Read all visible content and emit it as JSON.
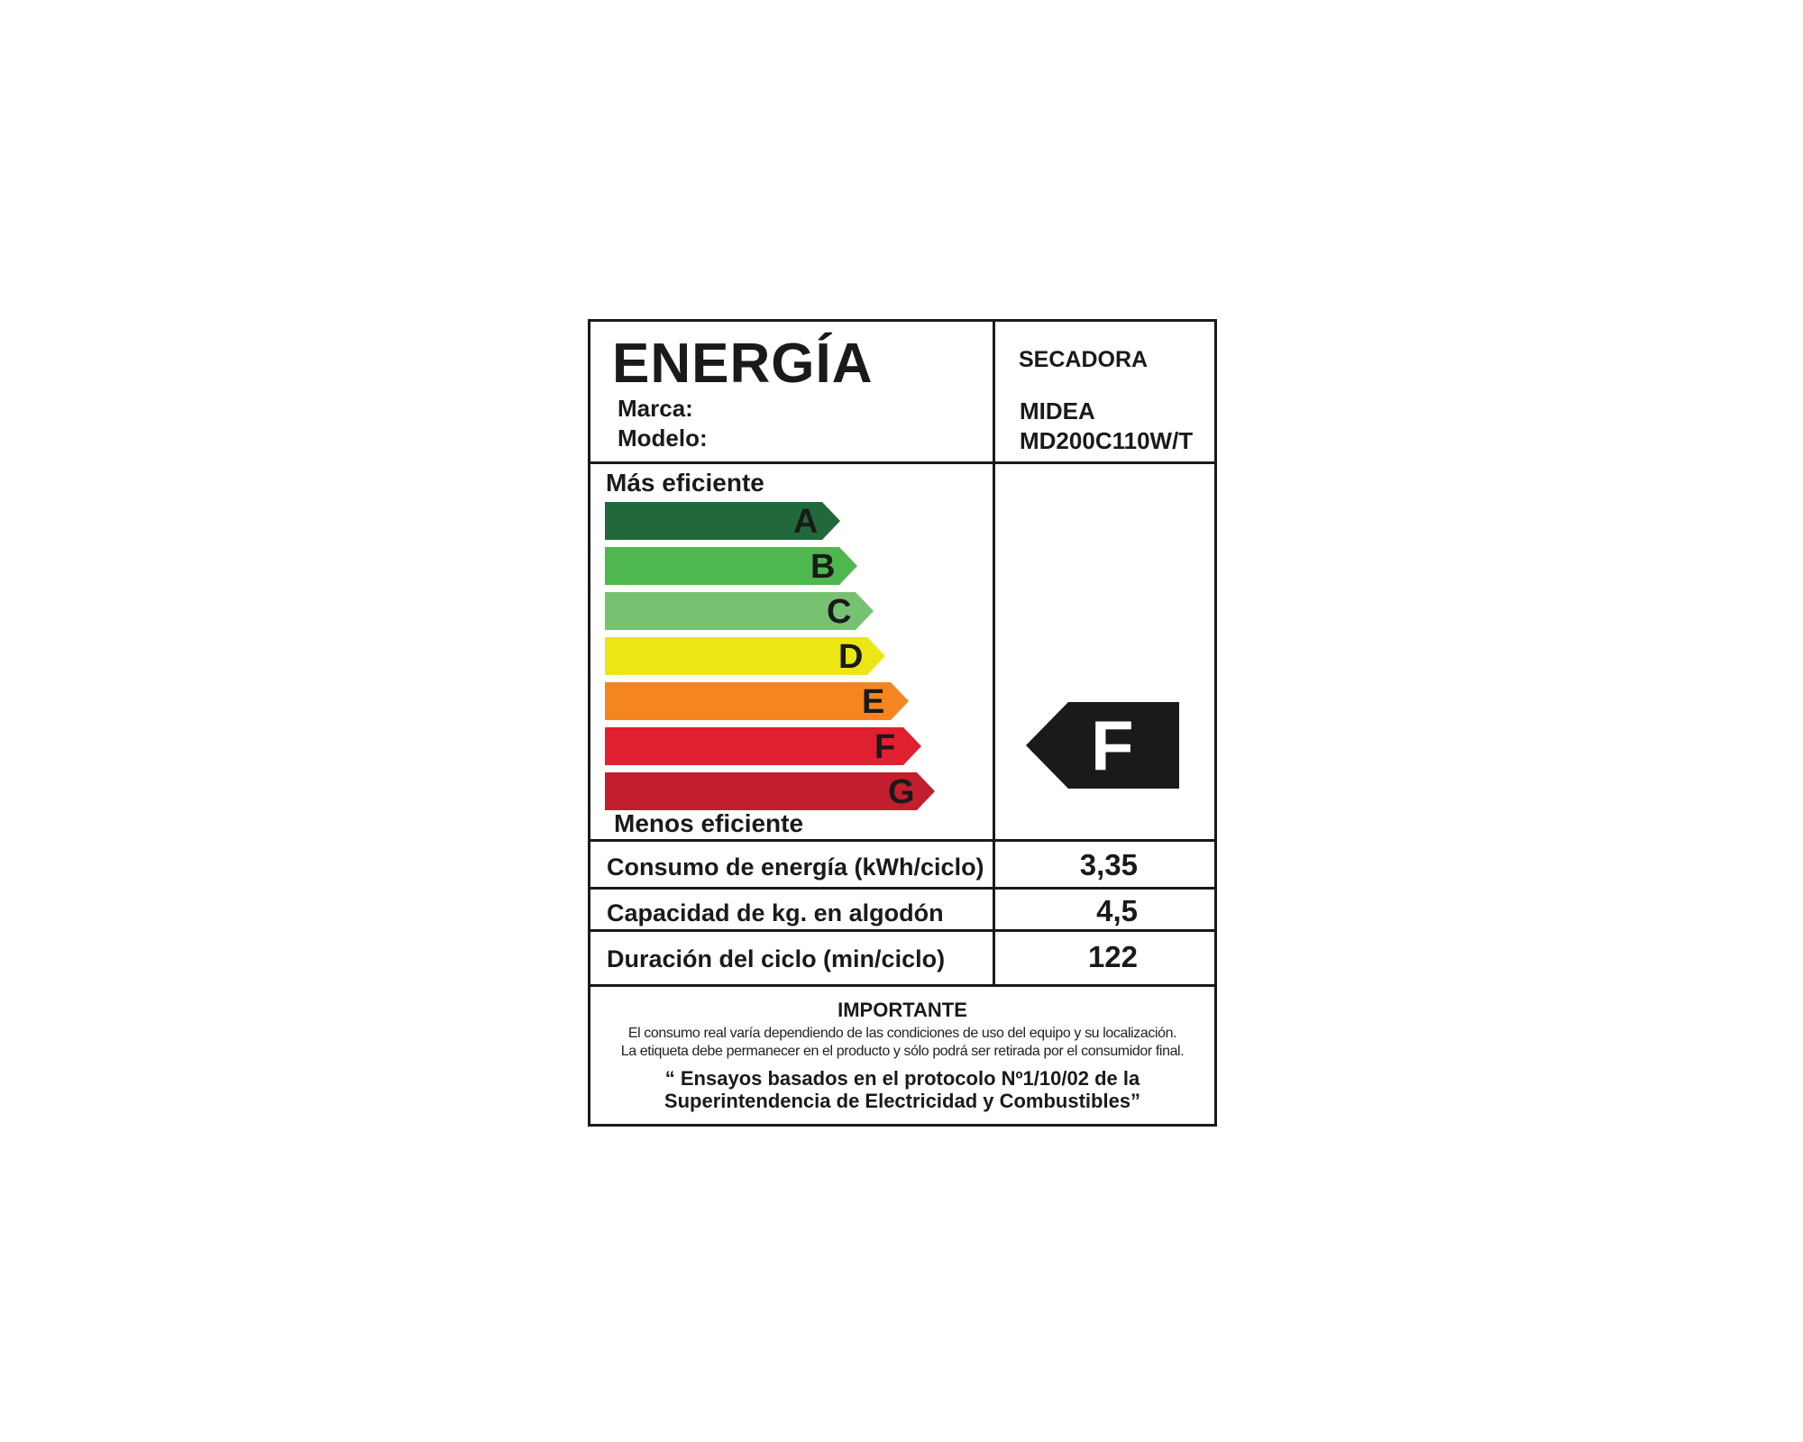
{
  "header": {
    "title": "ENERGÍA",
    "brand_label": "Marca:",
    "model_label": "Modelo:",
    "appliance_type": "SECADORA",
    "brand_value": "MIDEA",
    "model_value": "MD200C110W/T"
  },
  "scale": {
    "top_label": "Más eficiente",
    "bottom_label": "Menos eficiente",
    "classes": [
      {
        "letter": "A",
        "color": "#21693a"
      },
      {
        "letter": "B",
        "color": "#4fb74f"
      },
      {
        "letter": "C",
        "color": "#76c172"
      },
      {
        "letter": "D",
        "color": "#ece714"
      },
      {
        "letter": "E",
        "color": "#f58520"
      },
      {
        "letter": "F",
        "color": "#e01f30"
      },
      {
        "letter": "G",
        "color": "#c21e2e"
      }
    ],
    "rating": "F",
    "rating_color": "#1a1a1a"
  },
  "specs": [
    {
      "label": "Consumo de energía (kWh/ciclo)",
      "value": "3,35"
    },
    {
      "label": "Capacidad de kg. en algodón",
      "value": "4,5"
    },
    {
      "label": "Duración del ciclo (min/ciclo)",
      "value": "122"
    }
  ],
  "footer": {
    "heading": "IMPORTANTE",
    "line1": "El consumo real varía dependiendo de las condiciones de uso del equipo y su localización.",
    "line2": "La etiqueta debe permanecer en el  producto y sólo podrá ser retirada por el consumidor final.",
    "quote1": "“ Ensayos basados en el protocolo Nº1/10/02 de la",
    "quote2": "Superintendencia de Electricidad y Combustibles”"
  }
}
